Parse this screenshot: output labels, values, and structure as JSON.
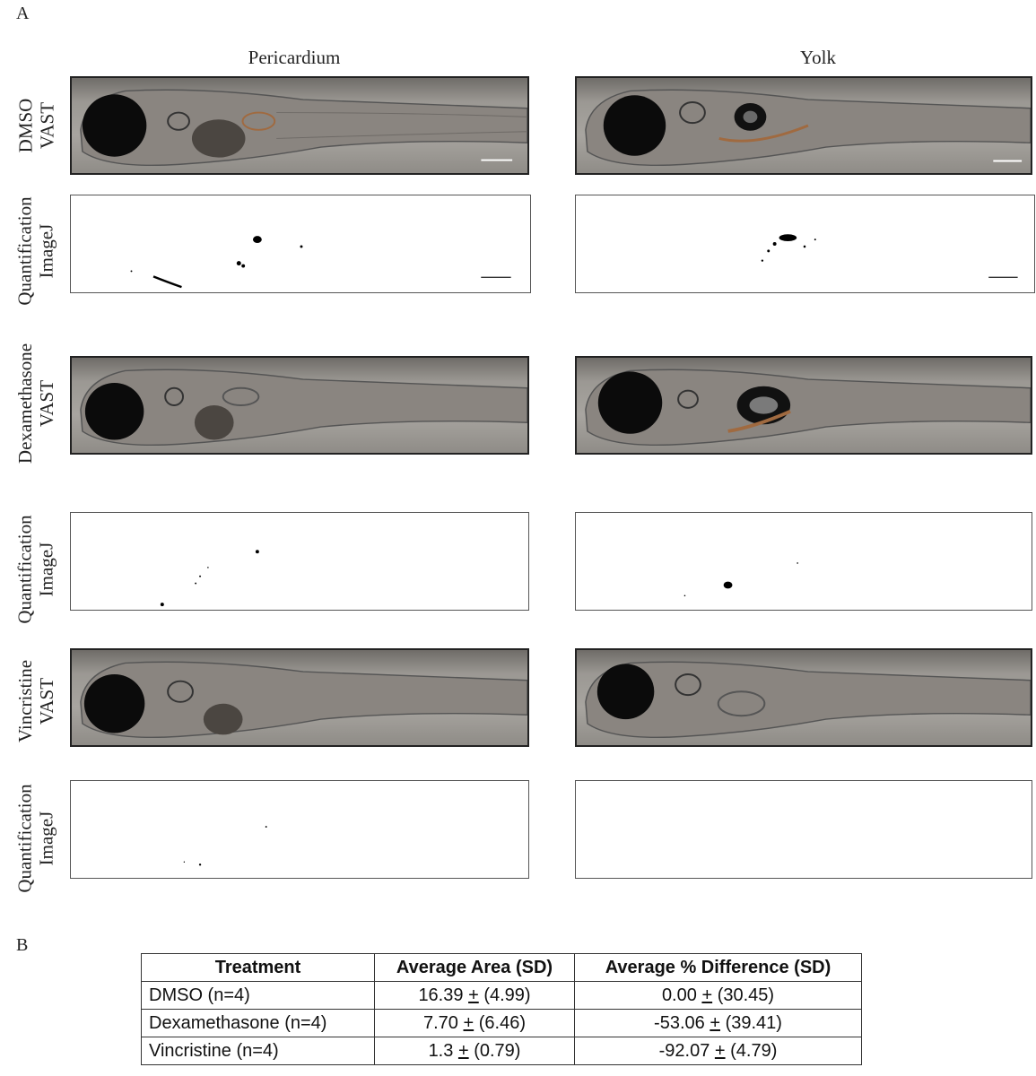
{
  "panel_a": "A",
  "panel_b": "B",
  "columns": [
    "Pericardium",
    "Yolk"
  ],
  "row_labels": {
    "dmso_vast": [
      "DMSO",
      "VAST"
    ],
    "dmso_quant": [
      "Quantification",
      "ImageJ"
    ],
    "dexa_vast": [
      "Dexamethasone",
      "VAST"
    ],
    "dexa_quant": [
      "Quantification",
      "ImageJ"
    ],
    "vinc_vast": [
      "Vincristine",
      "VAST"
    ],
    "vinc_quant": [
      "Quantification",
      "ImageJ"
    ]
  },
  "table": {
    "headers": [
      "Treatment",
      "Average Area (SD)",
      "Average % Difference (SD)"
    ],
    "pm": "+",
    "rows": [
      {
        "treatment": "DMSO (n=4)",
        "area_mean": "16.39",
        "area_sd": "(4.99)",
        "diff_mean": "0.00",
        "diff_sd": "(30.45)"
      },
      {
        "treatment": "Dexamethasone (n=4)",
        "area_mean": "7.70",
        "area_sd": "(6.46)",
        "diff_mean": "-53.06",
        "diff_sd": "(39.41)"
      },
      {
        "treatment": "Vincristine (n=4)",
        "area_mean": "1.3",
        "area_sd": "(0.79)",
        "diff_mean": "-92.07",
        "diff_sd": "(4.79)"
      }
    ]
  }
}
